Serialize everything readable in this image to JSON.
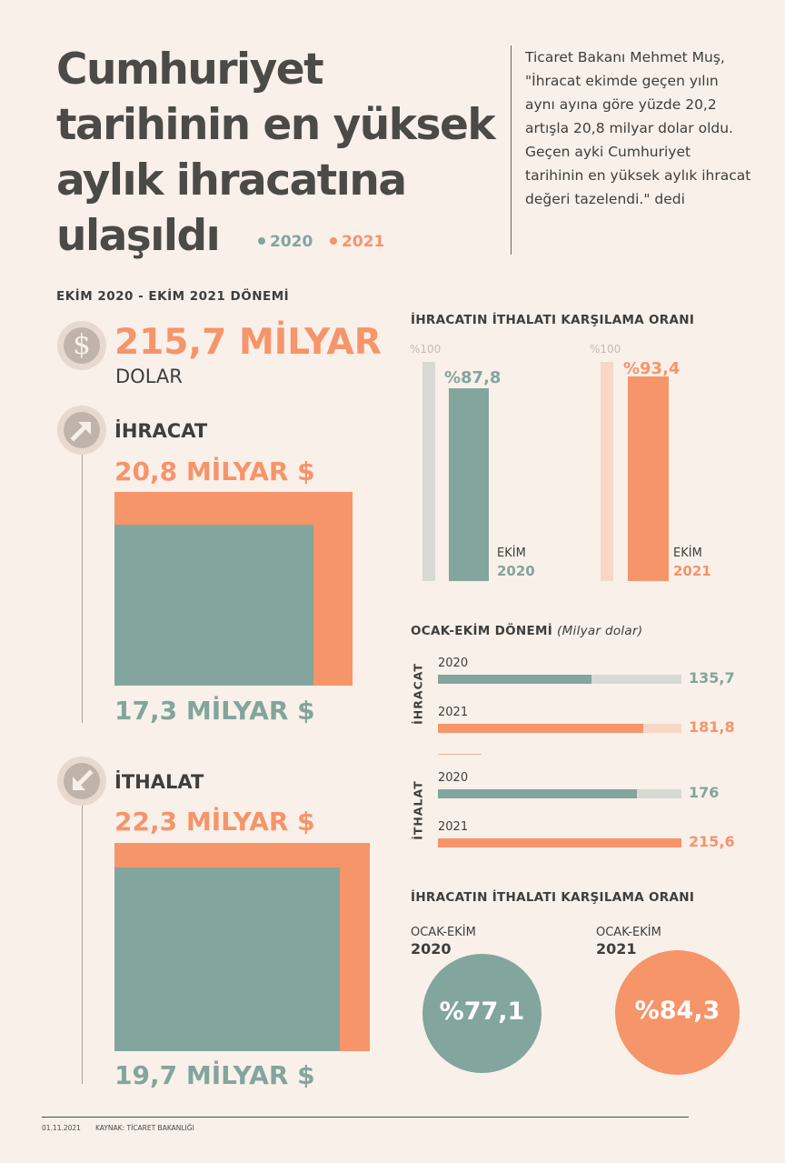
{
  "title": "Cumhuriyet tarihinin en yüksek aylık ihracatına ulaşıldı",
  "legend": [
    {
      "label": "2020",
      "color": "#82a59d"
    },
    {
      "label": "2021",
      "color": "#f6946a"
    }
  ],
  "quote": "Ticaret Bakanı Mehmet Muş, \"İhracat ekimde geçen yılın aynı ayına göre yüzde 20,2 artışla 20,8 milyar dolar oldu. Geçen ayki Cumhuriyet tarihinin en yüksek aylık ihracat değeri tazelendi.\" dedi",
  "period_label": "EKİM 2020 - EKİM 2021 DÖNEMİ",
  "total": {
    "value": "215,7 MİLYAR",
    "unit": "DOLAR",
    "icon": "dollar-icon"
  },
  "export": {
    "label": "İHRACAT",
    "icon": "arrow-up-right-icon",
    "value_2021": "20,8 MİLYAR $",
    "value_2020": "17,3 MİLYAR $"
  },
  "import": {
    "label": "İTHALAT",
    "icon": "arrow-down-left-icon",
    "value_2021": "22,3 MİLYAR $",
    "value_2020": "19,7 MİLYAR $"
  },
  "coverage_monthly": {
    "title": "İHRACATIN İTHALATI KARŞILAMA ORANI",
    "ref_label": "%100",
    "items": [
      {
        "value_label": "%87,8",
        "month": "EKİM",
        "year": "2020"
      },
      {
        "value_label": "%93,4",
        "month": "EKİM",
        "year": "2021"
      }
    ]
  },
  "period_chart": {
    "title": "OCAK-EKİM DÖNEMİ",
    "subtitle": "(Milyar dolar)",
    "groups": [
      {
        "label": "İHRACAT",
        "rows": [
          {
            "year": "2020",
            "value_label": "135,7"
          },
          {
            "year": "2021",
            "value_label": "181,8"
          }
        ]
      },
      {
        "label": "İTHALAT",
        "rows": [
          {
            "year": "2020",
            "value_label": "176"
          },
          {
            "year": "2021",
            "value_label": "215,6"
          }
        ]
      }
    ]
  },
  "coverage_period": {
    "title": "İHRACATIN İTHALATI KARŞILAMA ORANI",
    "items": [
      {
        "label": "OCAK-EKİM",
        "year": "2020",
        "value_label": "%77,1"
      },
      {
        "label": "OCAK-EKİM",
        "year": "2021",
        "value_label": "%84,3"
      }
    ]
  },
  "footer": {
    "date": "01.11.2021",
    "source": "KAYNAK: TİCARET BAKANLIĞI"
  },
  "chart_data": [
    {
      "type": "bar",
      "title": "İHRACATIN İTHALATI KARŞILAMA ORANI",
      "categories": [
        "EKİM 2020",
        "EKİM 2021"
      ],
      "values": [
        87.8,
        93.4
      ],
      "reference": 100,
      "ylim": [
        0,
        100
      ]
    },
    {
      "type": "bar",
      "title": "OCAK-EKİM DÖNEMİ",
      "subtitle": "(Milyar dolar)",
      "orientation": "horizontal",
      "categories": [
        "İHRACAT",
        "İTHALAT"
      ],
      "series": [
        {
          "name": "2020",
          "values": [
            135.7,
            176
          ]
        },
        {
          "name": "2021",
          "values": [
            181.8,
            215.6
          ]
        }
      ],
      "xlim": [
        0,
        215.6
      ]
    },
    {
      "type": "bar",
      "title": "EKİM 2020 - EKİM 2021 DÖNEMİ",
      "categories": [
        "İHRACAT",
        "İTHALAT"
      ],
      "series": [
        {
          "name": "2020",
          "values": [
            17.3,
            19.7
          ]
        },
        {
          "name": "2021",
          "values": [
            20.8,
            22.3
          ]
        }
      ]
    },
    {
      "type": "table",
      "title": "İHRACATIN İTHALATI KARŞILAMA ORANI",
      "categories": [
        "OCAK-EKİM 2020",
        "OCAK-EKİM 2021"
      ],
      "values": [
        77.1,
        84.3
      ]
    }
  ]
}
